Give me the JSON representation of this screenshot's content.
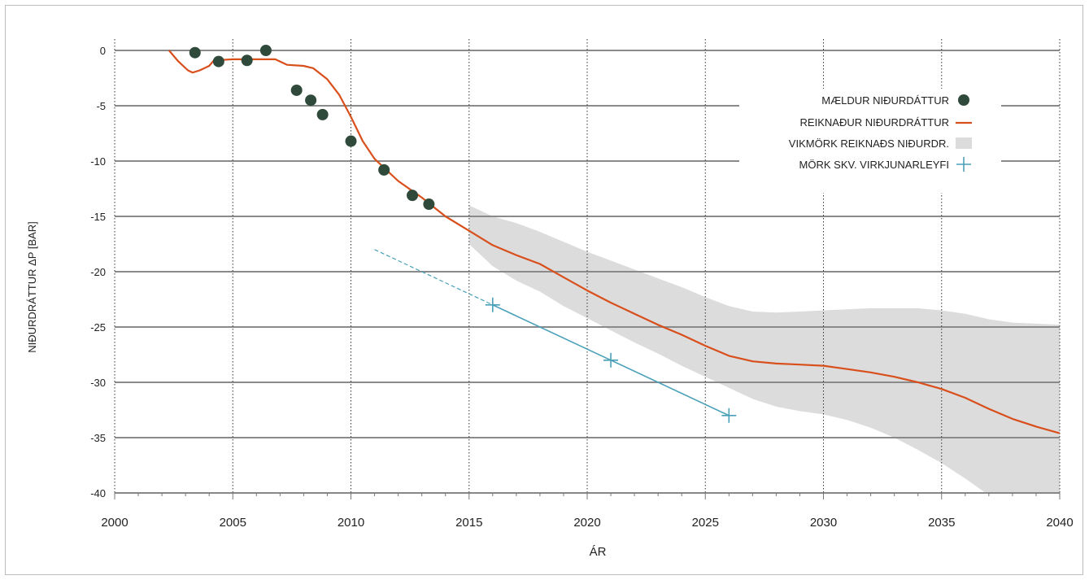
{
  "chart_data": {
    "type": "line",
    "xlabel": "ÁR",
    "ylabel": "NIÐURDRÁTTUR ΔP [BAR]",
    "xlim": [
      2000,
      2040
    ],
    "ylim": [
      -40,
      0
    ],
    "x_ticks": [
      2000,
      2005,
      2010,
      2015,
      2020,
      2025,
      2030,
      2035,
      2040
    ],
    "x_tick_labels": [
      "2000",
      "2005",
      "2010",
      "2015",
      "2020",
      "2025",
      "2030",
      "2035",
      "2040"
    ],
    "y_ticks": [
      0,
      -5,
      -10,
      -15,
      -20,
      -25,
      -30,
      -35,
      -40
    ],
    "y_tick_labels": [
      "0",
      "-5",
      "-10",
      "-15",
      "-20",
      "-25",
      "-30",
      "-35",
      "-40"
    ],
    "grid": {
      "horizontal": true,
      "vertical": "dotted"
    },
    "legend_position": "top-right",
    "colors": {
      "measured": "#2f4a3a",
      "calculated": "#d94f1c",
      "band": "#dcdcdc",
      "limit": "#4aa0b8",
      "grid": "#8a8a8a"
    },
    "series": [
      {
        "name": "MÆLDUR NIÐURDÁTTUR",
        "kind": "scatter",
        "x": [
          2003.4,
          2004.4,
          2005.6,
          2006.4,
          2007.7,
          2008.3,
          2008.8,
          2010.0,
          2011.4,
          2012.6,
          2013.3
        ],
        "y": [
          -0.2,
          -1.0,
          -0.9,
          0.0,
          -3.6,
          -4.5,
          -5.8,
          -8.2,
          -10.8,
          -13.1,
          -13.9
        ]
      },
      {
        "name": "REIKNAÐUR NIÐURDRÁTTUR",
        "kind": "line",
        "x": [
          2002.3,
          2002.7,
          2003.1,
          2003.3,
          2003.6,
          2004.0,
          2004.2,
          2005.0,
          2006.0,
          2006.8,
          2007.3,
          2008.0,
          2008.4,
          2009.0,
          2009.5,
          2010.0,
          2010.5,
          2011.0,
          2012.0,
          2013.0,
          2014.0,
          2015.0,
          2016.0,
          2017.0,
          2018.0,
          2019.0,
          2020.0,
          2021.0,
          2022.0,
          2023.0,
          2024.0,
          2025.0,
          2026.0,
          2027.0,
          2028.0,
          2029.0,
          2030.0,
          2031.0,
          2032.0,
          2033.0,
          2034.0,
          2035.0,
          2036.0,
          2037.0,
          2038.0,
          2039.0,
          2040.0
        ],
        "y": [
          0.0,
          -1.0,
          -1.8,
          -2.0,
          -1.8,
          -1.4,
          -0.9,
          -0.8,
          -0.8,
          -0.8,
          -1.3,
          -1.4,
          -1.6,
          -2.6,
          -4.0,
          -6.0,
          -8.2,
          -9.8,
          -11.8,
          -13.3,
          -15.0,
          -16.3,
          -17.6,
          -18.5,
          -19.3,
          -20.5,
          -21.7,
          -22.8,
          -23.8,
          -24.8,
          -25.7,
          -26.7,
          -27.6,
          -28.1,
          -28.3,
          -28.4,
          -28.5,
          -28.8,
          -29.1,
          -29.5,
          -30.0,
          -30.6,
          -31.4,
          -32.4,
          -33.3,
          -34.0,
          -34.6
        ]
      },
      {
        "name": "VIKMÖRK REIKNAÐS NIÐURDR.",
        "kind": "band",
        "x": [
          2015.0,
          2016.0,
          2017.0,
          2018.0,
          2019.0,
          2020.0,
          2021.0,
          2022.0,
          2023.0,
          2024.0,
          2025.0,
          2026.0,
          2027.0,
          2028.0,
          2029.0,
          2030.0,
          2031.0,
          2032.0,
          2033.0,
          2034.0,
          2035.0,
          2036.0,
          2037.0,
          2038.0,
          2039.0,
          2040.0
        ],
        "upper": [
          -14.0,
          -15.0,
          -15.6,
          -16.4,
          -17.3,
          -18.2,
          -19.0,
          -19.8,
          -20.6,
          -21.4,
          -22.3,
          -23.1,
          -23.6,
          -23.7,
          -23.6,
          -23.5,
          -23.4,
          -23.3,
          -23.3,
          -23.3,
          -23.5,
          -23.8,
          -24.3,
          -24.6,
          -24.7,
          -24.8
        ],
        "lower": [
          -17.5,
          -19.5,
          -20.8,
          -21.8,
          -23.1,
          -24.2,
          -25.3,
          -26.4,
          -27.4,
          -28.5,
          -29.5,
          -30.5,
          -31.5,
          -32.2,
          -32.6,
          -32.9,
          -33.4,
          -34.1,
          -35.0,
          -36.1,
          -37.3,
          -38.7,
          -40.2,
          -40.5,
          -40.5,
          -40.5
        ]
      },
      {
        "name": "MÖRK SKV. VIRKJUNARLEYFI",
        "kind": "line-markers",
        "x": [
          2016.0,
          2021.0,
          2026.0
        ],
        "y": [
          -23.0,
          -28.0,
          -33.0
        ],
        "dashed_extension": {
          "x": [
            2011.0,
            2016.0
          ],
          "y": [
            -18.0,
            -23.0
          ]
        }
      }
    ]
  }
}
